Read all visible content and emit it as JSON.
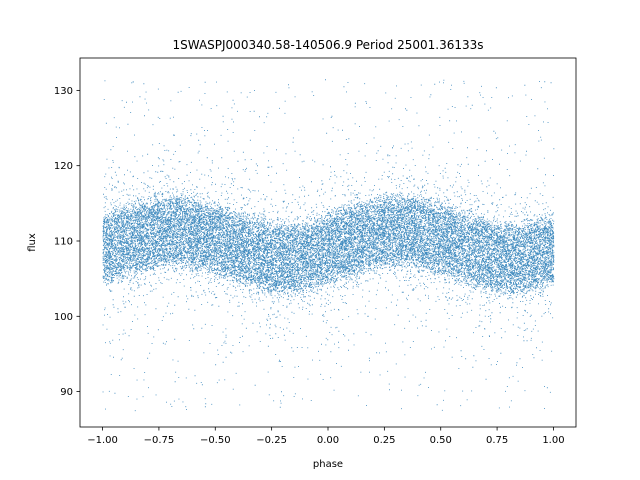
{
  "chart_data": {
    "type": "scatter",
    "title": "1SWASPJ000340.58-140506.9 Period 25001.36133s",
    "xlabel": "phase",
    "ylabel": "flux",
    "xlim": [
      -1.1,
      1.1
    ],
    "ylim": [
      85.3,
      134.3
    ],
    "x_ticks": [
      -1.0,
      -0.75,
      -0.5,
      -0.25,
      0.0,
      0.25,
      0.5,
      0.75,
      1.0
    ],
    "x_tick_labels": [
      "−1.00",
      "−0.75",
      "−0.50",
      "−0.25",
      "0.00",
      "0.25",
      "0.50",
      "0.75",
      "1.00"
    ],
    "y_ticks": [
      90,
      100,
      110,
      120,
      130
    ],
    "y_tick_labels": [
      "90",
      "100",
      "110",
      "120",
      "130"
    ],
    "grid": false,
    "legend": "none",
    "marker_color": "#1f77b4",
    "series": [
      {
        "phase": [
          -1.0,
          -0.875,
          -0.75,
          -0.625,
          -0.5,
          -0.375,
          -0.25,
          -0.125,
          0.0,
          0.125,
          0.25,
          0.375,
          0.5,
          0.625,
          0.75,
          0.875,
          1.0
        ],
        "mean_flux": [
          109.0,
          110.3,
          111.3,
          111.3,
          110.3,
          109.0,
          107.7,
          107.7,
          109.0,
          110.3,
          111.3,
          111.3,
          110.3,
          109.0,
          107.7,
          107.7,
          109.0
        ],
        "core_band_half_width": 4.2,
        "flux_min": 87.5,
        "flux_max": 131.5,
        "points_drawn": 26000
      }
    ]
  }
}
